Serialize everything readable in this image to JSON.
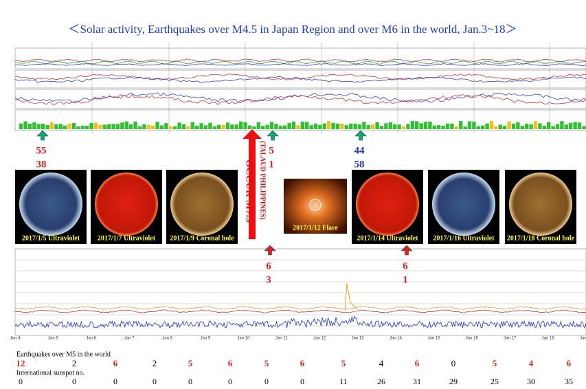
{
  "title": "＜Solar activity, Earthquakes over M4.5 in Japan Region and over M6 in the world, Jan.3~18＞",
  "annotations": [
    {
      "lines": [
        "55",
        "38"
      ],
      "color": "#e02020",
      "arrow": "#1aa37a"
    },
    {
      "lines": [
        "5",
        "1"
      ],
      "color": "#e02020",
      "arrow": "#1aa37a"
    },
    {
      "lines": [
        "44",
        "58"
      ],
      "color": "#2030c0",
      "arrow": "#1aa37a"
    },
    {
      "lines": [
        "6",
        "3"
      ],
      "color": "#e02020",
      "arrow": "#e02020"
    },
    {
      "lines": [
        "6",
        "1"
      ],
      "color": "#e02020",
      "arrow": "#e02020"
    }
  ],
  "big_event": {
    "text": "OCCUR M7.3",
    "place": "(TALAUD PHILIPPINES)"
  },
  "images": [
    "2017/1/5 Ultraviolet",
    "2017/1/7 Ultraviolet",
    "2017/1/9 Coronal hole",
    "2017/1/12 Flare",
    "2017/1/14 Ultraviolet",
    "2017/1/16 Ultraviolet",
    "2017/1/18 Coronal hole"
  ],
  "xray_dates": [
    "Jan 4",
    "Jan 5",
    "Jan 6",
    "Jan 7",
    "Jan 8",
    "Jan 9",
    "Jan 10",
    "Jan 11",
    "Jan 12",
    "Jan 13",
    "Jan 14",
    "Jan 15",
    "Jan 16",
    "Jan 17",
    "Jan 18",
    "Jan 19"
  ],
  "table": {
    "earthquake_label": "Earthquakes over M5 in the world",
    "earthquakes": [
      {
        "v": "12",
        "color": "#e02020"
      },
      {
        "v": "2",
        "color": "#000000"
      },
      {
        "v": "6",
        "color": "#e02020"
      },
      {
        "v": "2",
        "color": "#000000"
      },
      {
        "v": "5",
        "color": "#e02020"
      },
      {
        "v": "6",
        "color": "#e02020"
      },
      {
        "v": "5",
        "color": "#e02020"
      },
      {
        "v": "6",
        "color": "#e02020"
      },
      {
        "v": "5",
        "color": "#e02020"
      },
      {
        "v": "4",
        "color": "#000000"
      },
      {
        "v": "6",
        "color": "#e02020"
      },
      {
        "v": "0",
        "color": "#000000"
      },
      {
        "v": "5",
        "color": "#e02020"
      },
      {
        "v": "4",
        "color": "#e02020"
      },
      {
        "v": "6",
        "color": "#e02020"
      }
    ],
    "sunspot_label": "International sunspot no.",
    "sunspots": [
      "0",
      "0",
      "0",
      "0",
      "0",
      "0",
      "0",
      "0",
      "11",
      "26",
      "31",
      "29",
      "25",
      "30",
      "35"
    ]
  }
}
